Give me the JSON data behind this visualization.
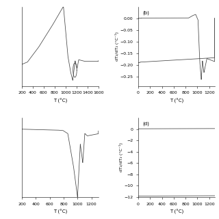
{
  "line_color": "#444444",
  "bg_color": "#ffffff",
  "fontsize": 5,
  "panel_a": {
    "xlim": [
      200,
      1600
    ],
    "ylim": [
      -0.35,
      0.75
    ],
    "xticks": [
      200,
      400,
      600,
      800,
      1000,
      1200,
      1400,
      1600
    ],
    "xlabel": "T (°C)"
  },
  "panel_b": {
    "xlim": [
      0,
      1290
    ],
    "ylim": [
      -0.29,
      0.05
    ],
    "xticks": [
      0,
      200,
      400,
      600,
      800,
      1000,
      1200
    ],
    "yticks": [
      0.0,
      -0.05,
      -0.1,
      -0.15,
      -0.2,
      -0.25
    ],
    "xlabel": "T (°C)",
    "ylabel": "dT₂/dT₂ (°C⁻¹)",
    "label": "(b)"
  },
  "panel_c": {
    "xlim": [
      200,
      1300
    ],
    "ylim": [
      -1.5,
      0.3
    ],
    "xticks": [
      200,
      400,
      600,
      800,
      1000,
      1200
    ],
    "xlabel": "T (°C)"
  },
  "panel_d": {
    "xlim": [
      0,
      1290
    ],
    "ylim": [
      -12,
      2
    ],
    "xticks": [
      0,
      200,
      400,
      600,
      800,
      1000,
      1200
    ],
    "yticks": [
      0,
      -2,
      -4,
      -6,
      -8,
      -10,
      -12
    ],
    "xlabel": "T (°C)",
    "ylabel": "dT₂/dT₂ (°C⁻¹)",
    "label": "(d)"
  }
}
